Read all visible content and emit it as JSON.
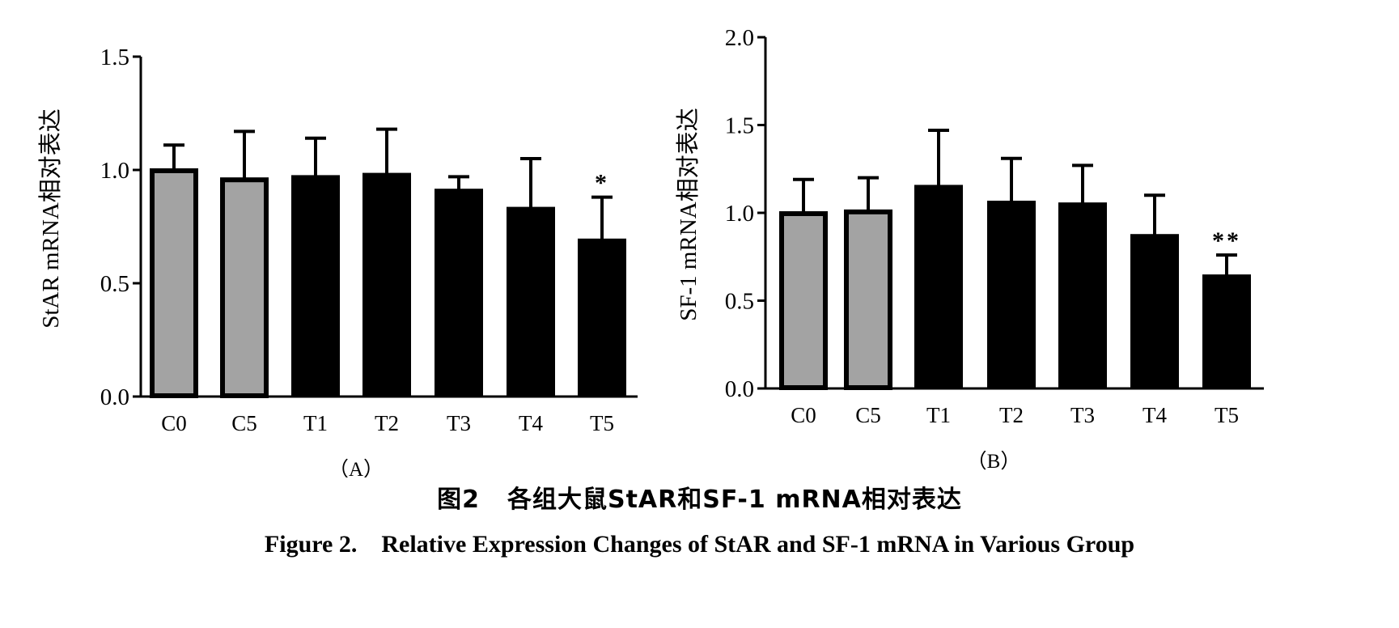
{
  "chart_data": [
    {
      "type": "bar",
      "panel_label": "（A）",
      "ylabel": "StAR mRNA相对表达",
      "ylim": [
        0,
        1.5
      ],
      "yticks": [
        "0.0",
        "0.5",
        "1.0",
        "1.5"
      ],
      "categories": [
        "C0",
        "C5",
        "T1",
        "T2",
        "T3",
        "T4",
        "T5"
      ],
      "values": [
        1.0,
        0.96,
        0.97,
        0.98,
        0.91,
        0.83,
        0.69
      ],
      "error_upper": [
        0.11,
        0.21,
        0.17,
        0.2,
        0.06,
        0.22,
        0.19
      ],
      "bar_colors": [
        "#a3a3a3",
        "#a3a3a3",
        "#000000",
        "#000000",
        "#000000",
        "#000000",
        "#000000"
      ],
      "significance": [
        "",
        "",
        "",
        "",
        "",
        "",
        "*"
      ]
    },
    {
      "type": "bar",
      "panel_label": "（B）",
      "ylabel": "SF-1 mRNA相对表达",
      "ylim": [
        0,
        2.0
      ],
      "yticks": [
        "0.0",
        "0.5",
        "1.0",
        "1.5",
        "2.0"
      ],
      "categories": [
        "C0",
        "C5",
        "T1",
        "T2",
        "T3",
        "T4",
        "T5"
      ],
      "values": [
        1.0,
        1.01,
        1.15,
        1.06,
        1.05,
        0.87,
        0.64
      ],
      "error_upper": [
        0.19,
        0.19,
        0.32,
        0.25,
        0.22,
        0.23,
        0.12
      ],
      "bar_colors": [
        "#a3a3a3",
        "#a3a3a3",
        "#000000",
        "#000000",
        "#000000",
        "#000000",
        "#000000"
      ],
      "significance": [
        "",
        "",
        "",
        "",
        "",
        "",
        "**"
      ]
    }
  ],
  "caption": {
    "cn_figure_number": "图2",
    "cn_title": "各组大鼠StAR和SF-1 mRNA相对表达",
    "en_figure_number": "Figure 2.",
    "en_title": "Relative Expression Changes of StAR and SF-1 mRNA in Various Group"
  }
}
